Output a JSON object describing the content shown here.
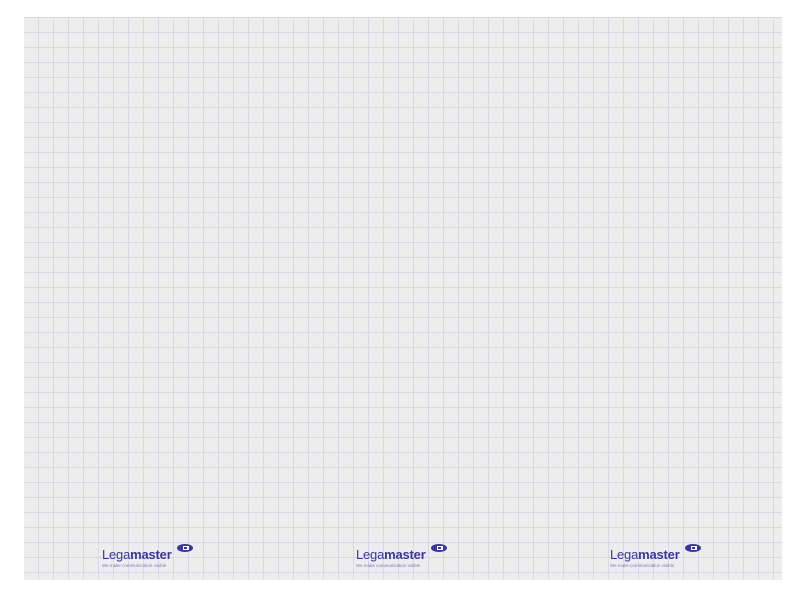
{
  "brand": {
    "light": "Lega",
    "bold": "master",
    "tagline": "We make communication visible",
    "color": "#3b34a8",
    "icon": "legamaster-pen-logo-icon"
  },
  "sheet": {
    "background": "#ededee",
    "grid_color": "#d9d7e6",
    "logo_count": 3
  }
}
